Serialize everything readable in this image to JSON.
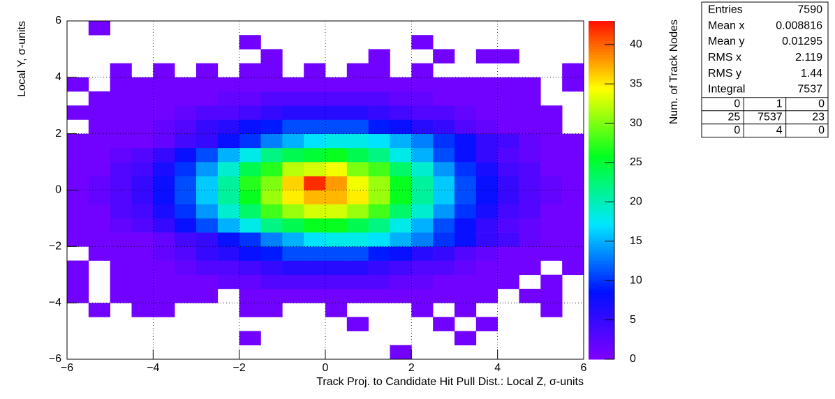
{
  "chart_data": {
    "type": "heatmap",
    "x_label": "Track Proj. to Candidate Hit Pull Dist.: Local Z, σ-units",
    "y_label": "Local Y, σ-units",
    "z_label": "Num. of Track Nodes",
    "xlim": [
      -6,
      6
    ],
    "ylim": [
      -6,
      6
    ],
    "zlim": [
      0,
      43
    ],
    "xticks": [
      {
        "value": -6,
        "label": "−6"
      },
      {
        "value": -4,
        "label": "−4"
      },
      {
        "value": -2,
        "label": "−2"
      },
      0,
      2,
      4,
      6
    ],
    "yticks": [
      {
        "value": -6,
        "label": "−6"
      },
      {
        "value": -4,
        "label": "−4"
      },
      {
        "value": -2,
        "label": "−2"
      },
      0,
      2,
      4,
      6
    ],
    "zticks": [
      0,
      5,
      10,
      15,
      20,
      25,
      30,
      35,
      40
    ],
    "grid": true,
    "colormap": [
      "#8000ff",
      "#0010ff",
      "#00e8ff",
      "#00ff20",
      "#ffff00",
      "#ff1000"
    ],
    "z": [
      [
        0,
        0,
        0,
        0,
        0,
        0,
        0,
        0,
        0,
        0,
        0,
        0,
        0,
        0,
        0,
        1,
        0,
        0,
        0,
        0,
        0,
        0,
        0,
        0
      ],
      [
        0,
        0,
        0,
        0,
        0,
        0,
        0,
        0,
        1,
        0,
        0,
        0,
        0,
        0,
        0,
        0,
        0,
        0,
        1,
        0,
        0,
        0,
        0,
        0
      ],
      [
        0,
        0,
        0,
        0,
        0,
        0,
        0,
        0,
        0,
        0,
        0,
        0,
        0,
        1,
        0,
        0,
        0,
        1,
        0,
        1,
        0,
        0,
        0,
        0
      ],
      [
        0,
        1,
        0,
        1,
        1,
        0,
        0,
        0,
        1,
        1,
        0,
        0,
        1,
        0,
        0,
        0,
        1,
        0,
        1,
        0,
        0,
        0,
        1,
        0
      ],
      [
        1,
        0,
        1,
        1,
        1,
        1,
        1,
        0,
        1,
        1,
        1,
        1,
        1,
        1,
        1,
        1,
        1,
        1,
        1,
        1,
        0,
        1,
        1,
        0
      ],
      [
        1,
        0,
        1,
        1,
        1,
        1,
        1,
        2,
        2,
        3,
        3,
        3,
        3,
        3,
        3,
        2,
        2,
        1,
        1,
        1,
        1,
        0,
        1,
        0
      ],
      [
        1,
        0,
        1,
        1,
        1,
        2,
        3,
        3,
        4,
        5,
        6,
        6,
        6,
        6,
        5,
        4,
        3,
        3,
        2,
        1,
        1,
        1,
        0,
        1
      ],
      [
        0,
        1,
        1,
        1,
        2,
        3,
        5,
        6,
        8,
        9,
        11,
        11,
        11,
        11,
        9,
        8,
        6,
        5,
        3,
        2,
        1,
        1,
        1,
        1
      ],
      [
        1,
        1,
        1,
        1,
        2,
        4,
        5,
        8,
        10,
        13,
        15,
        17,
        18,
        18,
        17,
        15,
        13,
        10,
        8,
        5,
        4,
        2,
        1,
        1
      ],
      [
        1,
        1,
        2,
        3,
        5,
        8,
        11,
        15,
        18,
        22,
        24,
        26,
        26,
        24,
        22,
        18,
        15,
        11,
        8,
        5,
        3,
        2,
        1,
        1
      ],
      [
        1,
        1,
        3,
        4,
        7,
        10,
        14,
        19,
        23,
        28,
        31,
        33,
        33,
        31,
        28,
        23,
        19,
        14,
        10,
        7,
        4,
        3,
        1,
        1
      ],
      [
        1,
        2,
        3,
        5,
        8,
        11,
        16,
        21,
        26,
        31,
        35,
        37,
        37,
        35,
        31,
        26,
        21,
        16,
        11,
        8,
        5,
        3,
        2,
        1
      ],
      [
        1,
        2,
        3,
        5,
        8,
        11,
        16,
        21,
        27,
        30,
        36,
        42,
        38,
        34,
        31,
        26,
        21,
        16,
        11,
        8,
        5,
        3,
        2,
        1
      ],
      [
        1,
        1,
        3,
        4,
        7,
        10,
        14,
        19,
        24,
        27,
        32,
        33,
        34,
        30,
        28,
        23,
        19,
        14,
        10,
        7,
        4,
        3,
        1,
        1
      ],
      [
        1,
        1,
        2,
        3,
        5,
        8,
        11,
        15,
        18,
        22,
        24,
        25,
        26,
        24,
        22,
        18,
        15,
        11,
        8,
        5,
        3,
        2,
        1,
        1
      ],
      [
        1,
        1,
        1,
        1,
        2,
        4,
        5,
        8,
        10,
        13,
        15,
        17,
        18,
        18,
        17,
        15,
        13,
        10,
        8,
        5,
        4,
        2,
        1,
        1
      ],
      [
        0,
        1,
        1,
        1,
        2,
        3,
        5,
        6,
        8,
        9,
        11,
        11,
        11,
        11,
        9,
        8,
        6,
        5,
        3,
        2,
        1,
        1,
        1,
        0
      ],
      [
        1,
        1,
        1,
        1,
        1,
        2,
        3,
        3,
        4,
        5,
        6,
        6,
        6,
        6,
        5,
        4,
        3,
        3,
        2,
        1,
        1,
        1,
        1,
        0
      ],
      [
        0,
        1,
        1,
        1,
        1,
        1,
        1,
        2,
        2,
        3,
        3,
        3,
        3,
        3,
        3,
        2,
        2,
        1,
        1,
        1,
        1,
        1,
        0,
        0
      ],
      [
        1,
        0,
        1,
        1,
        1,
        1,
        1,
        1,
        1,
        1,
        1,
        1,
        1,
        1,
        1,
        1,
        1,
        1,
        1,
        1,
        1,
        1,
        0,
        1
      ],
      [
        0,
        0,
        1,
        0,
        1,
        0,
        1,
        0,
        1,
        1,
        0,
        1,
        0,
        1,
        1,
        0,
        1,
        0,
        0,
        0,
        0,
        0,
        0,
        1
      ],
      [
        0,
        0,
        0,
        0,
        0,
        0,
        0,
        0,
        0,
        1,
        0,
        0,
        0,
        0,
        1,
        0,
        0,
        1,
        0,
        1,
        1,
        0,
        0,
        0
      ],
      [
        0,
        0,
        0,
        0,
        0,
        0,
        0,
        0,
        1,
        0,
        0,
        0,
        0,
        0,
        0,
        0,
        1,
        0,
        0,
        0,
        0,
        0,
        0,
        0
      ],
      [
        0,
        1,
        0,
        0,
        0,
        0,
        0,
        0,
        0,
        0,
        0,
        0,
        0,
        0,
        0,
        0,
        0,
        0,
        0,
        0,
        0,
        0,
        0,
        0
      ]
    ],
    "stats": [
      {
        "label": "Entries",
        "value": "7590"
      },
      {
        "label": "Mean x",
        "value": "0.008816"
      },
      {
        "label": "Mean y",
        "value": "0.01295"
      },
      {
        "label": "RMS x",
        "value": "2.119"
      },
      {
        "label": "RMS y",
        "value": "1.44"
      },
      {
        "label": "Integral",
        "value": "7537"
      }
    ],
    "overflow_table": [
      [
        0,
        1,
        0
      ],
      [
        25,
        7537,
        23
      ],
      [
        0,
        4,
        0
      ]
    ]
  }
}
